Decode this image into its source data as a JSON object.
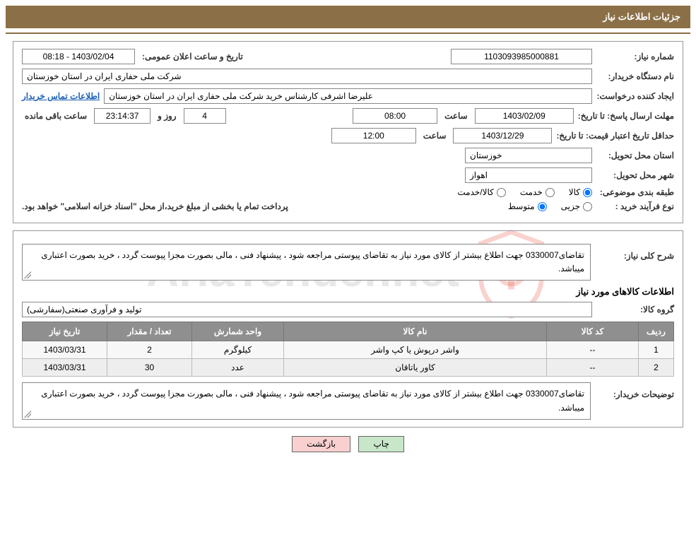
{
  "header": {
    "title": "جزئیات اطلاعات نیاز"
  },
  "watermark": "AriaTender.net",
  "form": {
    "need_number_label": "شماره نیاز:",
    "need_number": "1103093985000881",
    "announce_label": "تاریخ و ساعت اعلان عمومی:",
    "announce_value": "1403/02/04 - 08:18",
    "buyer_org_label": "نام دستگاه خریدار:",
    "buyer_org": "شرکت ملی حفاری ایران در استان خوزستان",
    "requester_label": "ایجاد کننده درخواست:",
    "requester": "علیرضا اشرفی کارشناس خرید شرکت ملی حفاری ایران در استان خوزستان",
    "contact_link": "اطلاعات تماس خریدار",
    "response_deadline_label": "مهلت ارسال پاسخ: تا تاریخ:",
    "response_date": "1403/02/09",
    "time_label": "ساعت",
    "response_time": "08:00",
    "days_label": "روز و",
    "days_value": "4",
    "countdown": "23:14:37",
    "remaining_label": "ساعت باقی مانده",
    "price_validity_label": "حداقل تاریخ اعتبار قیمت: تا تاریخ:",
    "price_validity_date": "1403/12/29",
    "price_validity_time": "12:00",
    "province_label": "استان محل تحویل:",
    "province": "خوزستان",
    "city_label": "شهر محل تحویل:",
    "city": "اهواز",
    "category_label": "طبقه بندی موضوعی:",
    "cat_goods": "کالا",
    "cat_service": "خدمت",
    "cat_goods_service": "کالا/خدمت",
    "process_label": "نوع فرآیند خرید :",
    "proc_partial": "جزیی",
    "proc_medium": "متوسط",
    "payment_note": "پرداخت تمام یا بخشی از مبلغ خرید،از محل \"اسناد خزانه اسلامی\" خواهد بود."
  },
  "details": {
    "overview_label": "شرح کلی نیاز:",
    "overview_text": "تقاضای0330007 جهت اطلاع بیشتر از کالای مورد نیاز به تقاضای پیوستی مراجعه شود ، پیشنهاد فنی ، مالی بصورت مجزا پیوست گردد ، خرید بصورت اعتباری میباشد.",
    "items_title": "اطلاعات کالاهای مورد نیاز",
    "group_label": "گروه کالا:",
    "group_value": "تولید و فرآوری صنعتی(سفارشی)",
    "buyer_notes_label": "توضیحات خریدار:",
    "buyer_notes_text": "تقاضای0330007 جهت اطلاع بیشتر از کالای مورد نیاز به تقاضای پیوستی مراجعه شود ، پیشنهاد فنی ، مالی بصورت مجزا پیوست گردد ، خرید بصورت اعتباری میباشد."
  },
  "table": {
    "columns": [
      "ردیف",
      "کد کالا",
      "نام کالا",
      "واحد شمارش",
      "تعداد / مقدار",
      "تاریخ نیاز"
    ],
    "rows": [
      [
        "1",
        "--",
        "واشر درپوش یا کپ واشر",
        "کیلوگرم",
        "2",
        "1403/03/31"
      ],
      [
        "2",
        "--",
        "کاور یاتاقان",
        "عدد",
        "30",
        "1403/03/31"
      ]
    ],
    "col_widths": [
      "50px",
      "130px",
      "auto",
      "130px",
      "120px",
      "120px"
    ]
  },
  "buttons": {
    "print": "چاپ",
    "back": "بازگشت"
  },
  "colors": {
    "header_bg": "#8b6f47",
    "th_bg": "#8f8f8f",
    "btn_print_bg": "#c8e6c9",
    "btn_back_bg": "#f8d0d0",
    "link_color": "#1a5fb4"
  }
}
